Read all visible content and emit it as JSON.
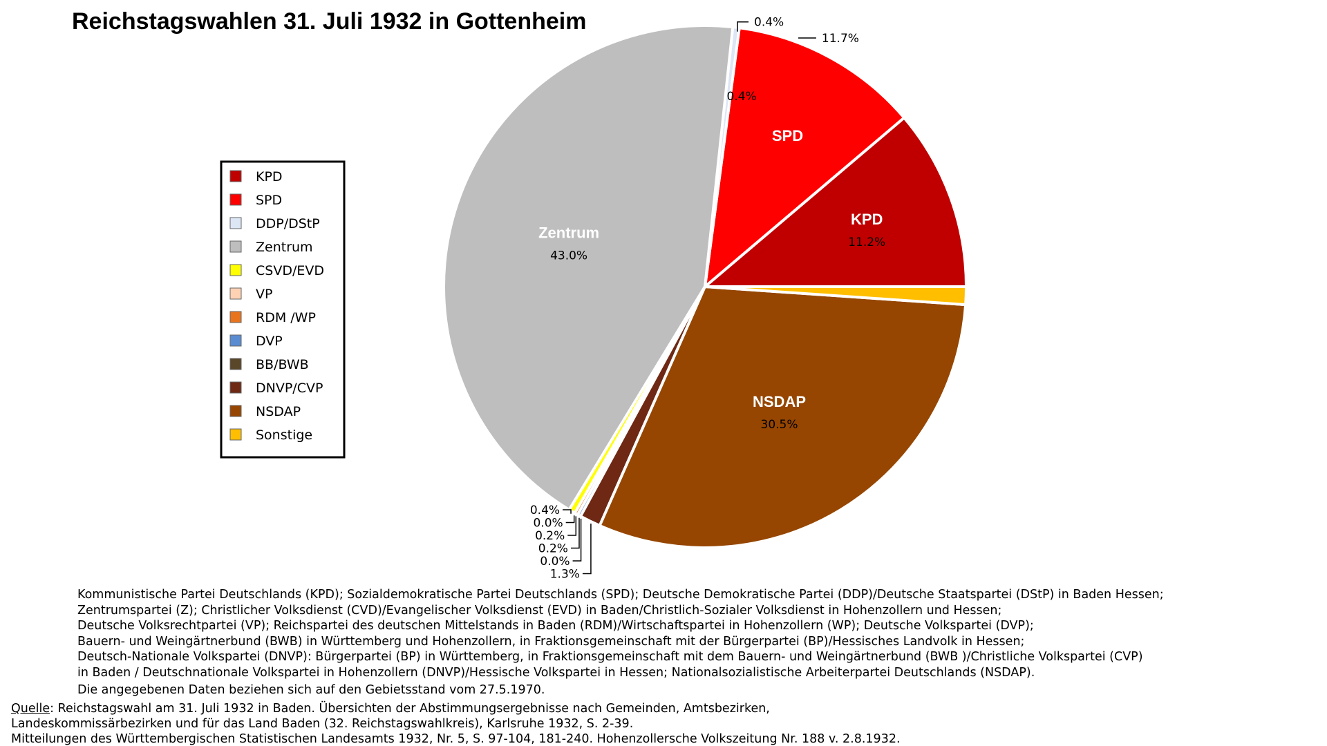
{
  "chart_data": {
    "type": "pie",
    "title": "Reichstagswahlen 31. Juli 1932 in Gottenheim",
    "legend_position": "left",
    "slices": [
      {
        "label": "KPD",
        "value": 11.2,
        "value_label": "11.2%",
        "color": "#c00000",
        "inside_name": "KPD",
        "inside_value": "11.2%"
      },
      {
        "label": "SPD",
        "value": 11.7,
        "value_label": "11.7%",
        "color": "#ff0000",
        "inside_name": "SPD",
        "inside_value": ""
      },
      {
        "label": "DDP/DStP",
        "value": 0.4,
        "value_label": "0.4%",
        "color": "#dde6f5",
        "inside_name": "",
        "inside_value": ""
      },
      {
        "label": "Zentrum",
        "value": 43.0,
        "value_label": "43.0%",
        "color": "#bebebe",
        "inside_name": "Zentrum",
        "inside_value": "43.0%"
      },
      {
        "label": "CSVD/EVD",
        "value": 0.4,
        "value_label": "0.4%",
        "color": "#ffff00",
        "inside_name": "",
        "inside_value": ""
      },
      {
        "label": "VP",
        "value": 0.0,
        "value_label": "0.0%",
        "color": "#ffd2b4",
        "inside_name": "",
        "inside_value": ""
      },
      {
        "label": "RDM /WP",
        "value": 0.2,
        "value_label": "0.2%",
        "color": "#e8741e",
        "inside_name": "",
        "inside_value": ""
      },
      {
        "label": "DVP",
        "value": 0.2,
        "value_label": "0.2%",
        "color": "#5a8cd2",
        "inside_name": "",
        "inside_value": ""
      },
      {
        "label": "BB/BWB",
        "value": 0.0,
        "value_label": "0.0%",
        "color": "#5a4628",
        "inside_name": "",
        "inside_value": ""
      },
      {
        "label": "DNVP/CVP",
        "value": 1.3,
        "value_label": "1.3%",
        "color": "#6e2814",
        "inside_name": "",
        "inside_value": ""
      },
      {
        "label": "NSDAP",
        "value": 30.5,
        "value_label": "30.5%",
        "color": "#964600",
        "inside_name": "NSDAP",
        "inside_value": "30.5%"
      },
      {
        "label": "Sonstige",
        "value": 1.1,
        "value_label": "1.1%",
        "color": "#ffbe00",
        "inside_name": "",
        "inside_value": ""
      }
    ]
  },
  "notes": [
    "Kommunistische Partei Deutschlands (KPD); Sozialdemokratische Partei Deutschlands (SPD); Deutsche Demokratische Partei (DDP)/Deutsche Staatspartei (DStP) in Baden Hessen;",
    "Zentrumspartei (Z); Christlicher Volksdienst (CVD)/Evangelischer Volksdienst (EVD) in Baden/Christlich-Sozialer Volksdienst in Hohenzollern und Hessen;",
    "Deutsche Volksrechtpartei (VP); Reichspartei des deutschen Mittelstands in Baden (RDM)/Wirtschaftspartei in Hohenzollern (WP); Deutsche Volkspartei (DVP);",
    "Bauern- und Weingärtnerbund (BWB) in Württemberg und Hohenzollern, in Fraktionsgemeinschaft mit der Bürgerpartei (BP)/Hessisches Landvolk in Hessen;",
    "Deutsch-Nationale Volkspartei (DNVP): Bürgerpartei (BP) in Württemberg, in Fraktionsgemeinschaft mit dem Bauern- und Weingärtnerbund (BWB )/Christliche Volkspartei (CVP)",
    "in Baden / Deutschnationale Volkspartei in Hohenzollern (DNVP)/Hessische Volkspartei in Hessen; Nationalsozialistische Arbeiterpartei Deutschlands (NSDAP)."
  ],
  "notes_footer": "Die angegebenen Daten beziehen sich auf den Gebietsstand vom 27.5.1970.",
  "source": {
    "label": "Quelle",
    "line1_rest": ": Reichstagswahl am 31. Juli 1932 in Baden. Übersichten der Abstimmungsergebnisse nach Gemeinden, Amtsbezirken,",
    "line2": "Landeskommissärbezirken und für das Land Baden (32. Reichstagswahlkreis), Karlsruhe 1932, S. 2-39.",
    "line3": "Mitteilungen des Württembergischen Statistischen Landesamts 1932, Nr. 5, S. 97-104, 181-240. Hohenzollersche Volkszeitung Nr. 188 v. 2.8.1932."
  }
}
